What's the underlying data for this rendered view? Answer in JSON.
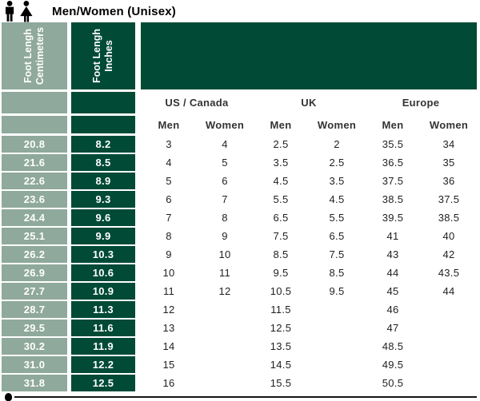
{
  "header": {
    "title": "Men/Women (Unisex)"
  },
  "colors": {
    "sage": "#8FA99C",
    "dark_green": "#004A36",
    "text_dark": "#1f1f1f"
  },
  "chart_data": {
    "type": "table",
    "title": "Men/Women (Unisex)",
    "rotated_headers": [
      [
        "Foot Lengh",
        "Centimeters"
      ],
      [
        "Foot Lengh",
        "Inches"
      ]
    ],
    "column_groups": [
      "US / Canada",
      "UK",
      "Europe"
    ],
    "sub_headers": [
      "Men",
      "Women",
      "Men",
      "Women",
      "Men",
      "Women"
    ],
    "columns": [
      "Foot Lengh Centimeters",
      "Foot Lengh Inches",
      "US/Canada Men",
      "US/Canada Women",
      "UK Men",
      "UK Women",
      "Europe Men",
      "Europe Women"
    ],
    "rows": [
      [
        "20.8",
        "8.2",
        "3",
        "4",
        "2.5",
        "2",
        "35.5",
        "34"
      ],
      [
        "21.6",
        "8.5",
        "4",
        "5",
        "3.5",
        "2.5",
        "36.5",
        "35"
      ],
      [
        "22.6",
        "8.9",
        "5",
        "6",
        "4.5",
        "3.5",
        "37.5",
        "36"
      ],
      [
        "23.6",
        "9.3",
        "6",
        "7",
        "5.5",
        "4.5",
        "38.5",
        "37.5"
      ],
      [
        "24.4",
        "9.6",
        "7",
        "8",
        "6.5",
        "5.5",
        "39.5",
        "38.5"
      ],
      [
        "25.1",
        "9.9",
        "8",
        "9",
        "7.5",
        "6.5",
        "41",
        "40"
      ],
      [
        "26.2",
        "10.3",
        "9",
        "10",
        "8.5",
        "7.5",
        "43",
        "42"
      ],
      [
        "26.9",
        "10.6",
        "10",
        "11",
        "9.5",
        "8.5",
        "44",
        "43.5"
      ],
      [
        "27.7",
        "10.9",
        "11",
        "12",
        "10.5",
        "9.5",
        "45",
        "44"
      ],
      [
        "28.7",
        "11.3",
        "12",
        "",
        "11.5",
        "",
        "46",
        ""
      ],
      [
        "29.5",
        "11.6",
        "13",
        "",
        "12.5",
        "",
        "47",
        ""
      ],
      [
        "30.2",
        "11.9",
        "14",
        "",
        "13.5",
        "",
        "48.5",
        ""
      ],
      [
        "31.0",
        "12.2",
        "15",
        "",
        "14.5",
        "",
        "49.5",
        ""
      ],
      [
        "31.8",
        "12.5",
        "16",
        "",
        "15.5",
        "",
        "50.5",
        ""
      ]
    ]
  }
}
